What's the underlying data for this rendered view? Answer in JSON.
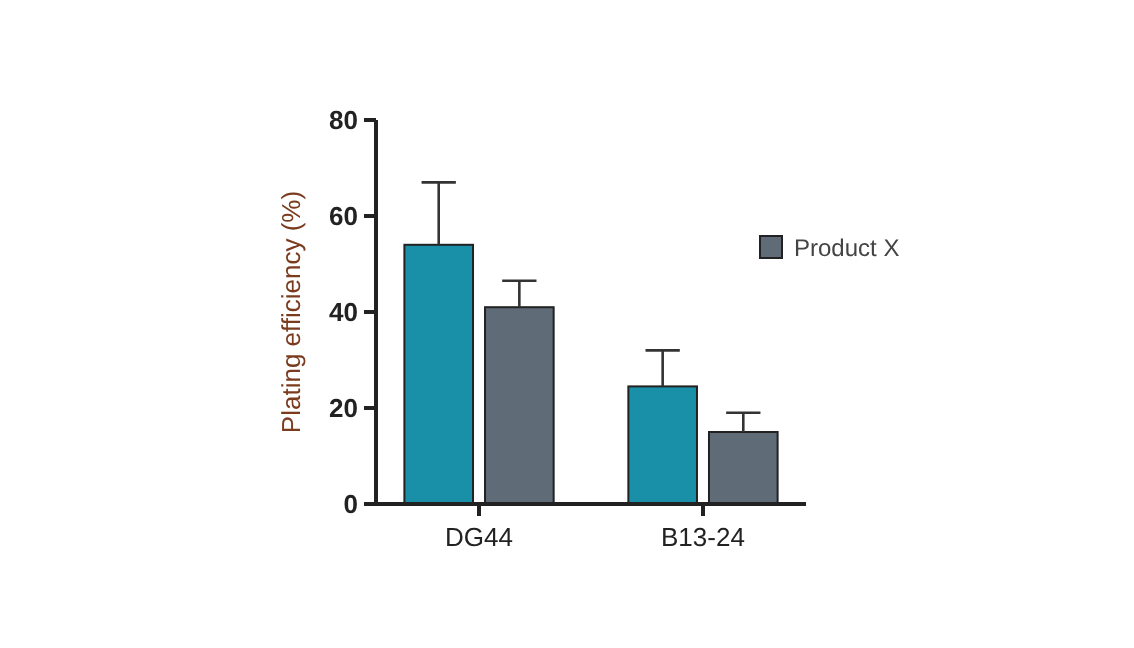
{
  "chart_data": {
    "type": "bar",
    "ylabel": "Plating efficiency (%)",
    "categories": [
      "DG44",
      "B13-24"
    ],
    "series": [
      {
        "color": "#1a8fa8",
        "values": [
          54,
          24.5
        ],
        "errors": [
          [
            54,
            67
          ],
          [
            24.5,
            32
          ]
        ]
      },
      {
        "name": "Product X",
        "color": "#5f6b76",
        "values": [
          41,
          15
        ],
        "errors": [
          [
            41,
            46.5
          ],
          [
            15,
            19
          ]
        ]
      }
    ],
    "ylim": [
      0,
      80
    ],
    "yticks": [
      0,
      20,
      40,
      60,
      80
    ],
    "grid": false,
    "legend": "right"
  }
}
